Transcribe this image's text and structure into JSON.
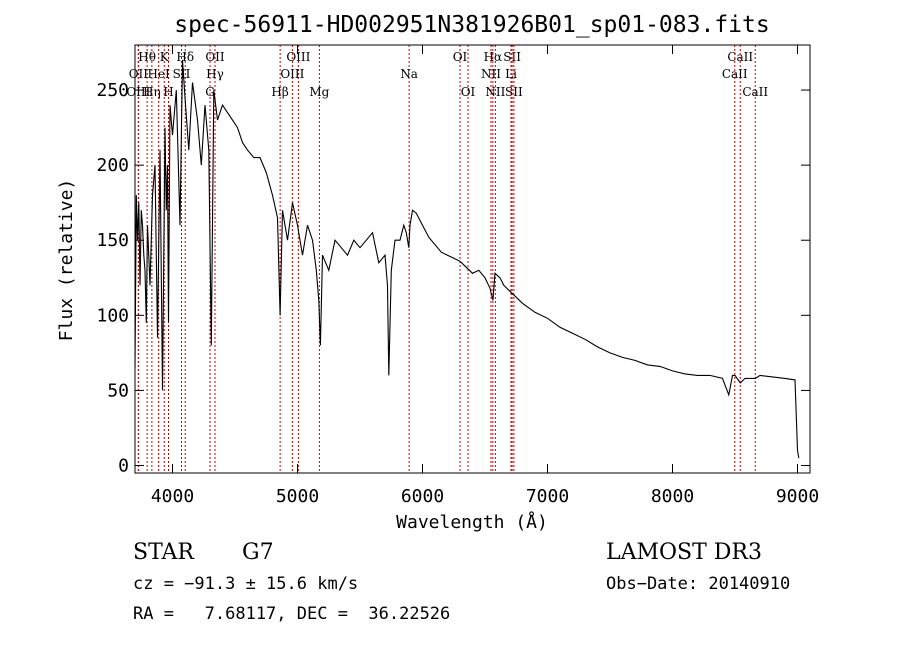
{
  "chart_data": {
    "type": "line",
    "title": "spec-56911-HD002951N381926B01_sp01-083.fits",
    "xlabel": "Wavelength (Å)",
    "ylabel": "Flux (relative)",
    "xlim": [
      3700,
      9100
    ],
    "ylim": [
      -5,
      280
    ],
    "xticks": [
      4000,
      5000,
      6000,
      7000,
      8000,
      9000
    ],
    "yticks": [
      0,
      50,
      100,
      150,
      200,
      250
    ],
    "series": [
      {
        "name": "spectrum",
        "x": [
          3700,
          3710,
          3720,
          3730,
          3740,
          3750,
          3760,
          3770,
          3780,
          3790,
          3800,
          3820,
          3840,
          3860,
          3880,
          3900,
          3920,
          3940,
          3950,
          3960,
          3968,
          3980,
          4000,
          4030,
          4060,
          4080,
          4100,
          4130,
          4160,
          4200,
          4230,
          4260,
          4290,
          4310,
          4330,
          4360,
          4400,
          4440,
          4480,
          4520,
          4560,
          4600,
          4650,
          4700,
          4750,
          4800,
          4840,
          4861,
          4880,
          4920,
          4960,
          5000,
          5040,
          5080,
          5120,
          5150,
          5170,
          5183,
          5200,
          5250,
          5300,
          5350,
          5400,
          5450,
          5500,
          5550,
          5600,
          5650,
          5700,
          5720,
          5730,
          5750,
          5780,
          5820,
          5850,
          5870,
          5890,
          5900,
          5920,
          5950,
          6000,
          6050,
          6100,
          6150,
          6200,
          6250,
          6300,
          6350,
          6400,
          6450,
          6500,
          6540,
          6563,
          6580,
          6620,
          6650,
          6700,
          6750,
          6800,
          6900,
          7000,
          7100,
          7200,
          7300,
          7400,
          7500,
          7600,
          7700,
          7800,
          7900,
          8000,
          8100,
          8200,
          8300,
          8400,
          8450,
          8480,
          8500,
          8542,
          8580,
          8662,
          8700,
          8800,
          8900,
          8980,
          9000,
          9010
        ],
        "values": [
          65,
          180,
          150,
          175,
          120,
          170,
          160,
          140,
          130,
          95,
          160,
          120,
          180,
          200,
          85,
          210,
          50,
          225,
          170,
          200,
          95,
          240,
          220,
          250,
          160,
          270,
          245,
          210,
          255,
          230,
          200,
          240,
          210,
          80,
          250,
          230,
          240,
          235,
          230,
          225,
          215,
          210,
          205,
          205,
          195,
          180,
          165,
          100,
          170,
          150,
          175,
          160,
          140,
          160,
          150,
          130,
          110,
          80,
          140,
          130,
          150,
          145,
          140,
          150,
          145,
          150,
          155,
          135,
          140,
          120,
          60,
          130,
          150,
          150,
          160,
          155,
          145,
          160,
          170,
          168,
          160,
          152,
          147,
          142,
          140,
          138,
          136,
          132,
          128,
          130,
          125,
          118,
          110,
          128,
          125,
          120,
          116,
          112,
          108,
          102,
          98,
          92,
          88,
          84,
          79,
          75,
          72,
          70,
          67,
          66,
          63,
          61,
          60,
          60,
          58,
          47,
          60,
          60,
          55,
          58,
          58,
          60,
          59,
          58,
          57,
          10,
          5
        ]
      }
    ],
    "line_markers": [
      {
        "label": "Hθ",
        "x": 3797,
        "row": 1
      },
      {
        "label": "K",
        "x": 3934,
        "row": 1
      },
      {
        "label": "Hδ",
        "x": 4102,
        "row": 1
      },
      {
        "label": "OII",
        "x": 4340,
        "row": 1
      },
      {
        "label": "OIII",
        "x": 5007,
        "row": 1
      },
      {
        "label": "OI",
        "x": 6300,
        "row": 1
      },
      {
        "label": "Hα",
        "x": 6563,
        "row": 1
      },
      {
        "label": "SII",
        "x": 6717,
        "row": 1
      },
      {
        "label": "CaII",
        "x": 8542,
        "row": 1
      },
      {
        "label": "OII",
        "x": 3727,
        "row": 2
      },
      {
        "label": "HeI",
        "x": 3889,
        "row": 2
      },
      {
        "label": "SII",
        "x": 4072,
        "row": 2
      },
      {
        "label": "Hγ",
        "x": 4340,
        "row": 2
      },
      {
        "label": "OIII",
        "x": 4959,
        "row": 2
      },
      {
        "label": "Na",
        "x": 5893,
        "row": 2
      },
      {
        "label": "NII",
        "x": 6548,
        "row": 2
      },
      {
        "label": "Li",
        "x": 6708,
        "row": 2
      },
      {
        "label": "CaII",
        "x": 8498,
        "row": 2
      },
      {
        "label": "OIII",
        "x": 3727,
        "row": 3
      },
      {
        "label": "Hη",
        "x": 3835,
        "row": 3
      },
      {
        "label": "H",
        "x": 3968,
        "row": 3
      },
      {
        "label": "G",
        "x": 4300,
        "row": 3
      },
      {
        "label": "Hβ",
        "x": 4861,
        "row": 3
      },
      {
        "label": "Mg",
        "x": 5175,
        "row": 3
      },
      {
        "label": "OI",
        "x": 6364,
        "row": 3
      },
      {
        "label": "NII",
        "x": 6583,
        "row": 3
      },
      {
        "label": "SII",
        "x": 6731,
        "row": 3
      },
      {
        "label": "CaII",
        "x": 8662,
        "row": 3
      }
    ]
  },
  "info": {
    "object_type": "STAR",
    "subclass": "G7",
    "survey": "LAMOST DR3",
    "cz": "cz = −91.3 ± 15.6 km/s",
    "obs_date": "Obs−Date: 20140910",
    "coords": "RA =   7.68117, DEC =  36.22526"
  }
}
